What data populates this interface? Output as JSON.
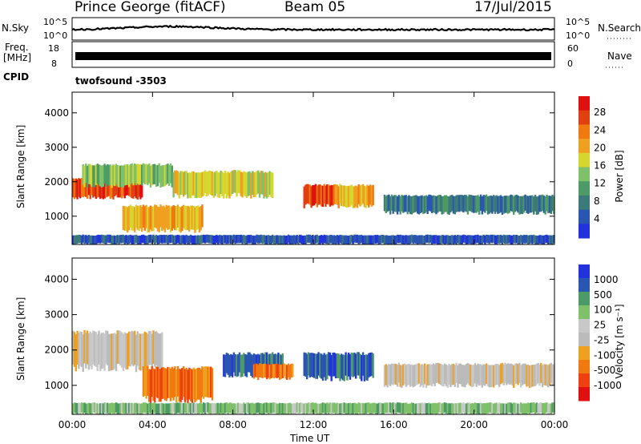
{
  "header": {
    "station": "Prince George (fitACF)",
    "beam": "Beam 05",
    "date": "17/Jul/2015"
  },
  "top_panels": {
    "nsky_label": "N.Sky",
    "nsky_ticks": [
      "10^5",
      "10^0"
    ],
    "nsearch_label": "N.Search",
    "nsearch_ticks": [
      "10^5",
      "10^0"
    ],
    "freq_label_line1": "Freq.",
    "freq_label_line2": "[MHz]",
    "freq_ticks": [
      "18",
      "8"
    ],
    "nave_label": "Nave",
    "nave_ticks": [
      "60",
      "0"
    ],
    "cpid_label": "CPID",
    "cpid_value": "twofsound -3503"
  },
  "colors": {
    "power_scale": [
      "#2233dd",
      "#2a55b0",
      "#3c7a7a",
      "#4d9a66",
      "#7fc06a",
      "#d6d62e",
      "#f0a020",
      "#f07a10",
      "#e04010",
      "#e01010"
    ],
    "velocity_scale": [
      "#e01010",
      "#f04010",
      "#f07a10",
      "#f0a020",
      "#bbbbbb",
      "#c8c8c8",
      "#7fc06a",
      "#4d9a66",
      "#2a55b0",
      "#2233dd"
    ]
  },
  "chart_data": [
    {
      "type": "heatmap",
      "panel": "power",
      "ylabel": "Slant Range [km]",
      "ylim": [
        180,
        4600
      ],
      "yticks": [
        "4000",
        "3000",
        "2000",
        "1000"
      ],
      "xticks": [
        "00:00",
        "04:00",
        "08:00",
        "12:00",
        "16:00",
        "20:00",
        "00:00"
      ],
      "xlim_hours": [
        0,
        24
      ],
      "colorbar": {
        "label": "Power [dB]",
        "ticks": [
          "28",
          "24",
          "20",
          "16",
          "12",
          "8",
          "4"
        ],
        "range": [
          0,
          32
        ]
      },
      "echo_bands": [
        {
          "t0": 0.0,
          "t1": 3.5,
          "r0": 1550,
          "r1": 2100,
          "level": 26
        },
        {
          "t0": 0.5,
          "t1": 5.0,
          "r0": 1900,
          "r1": 2500,
          "level": 14
        },
        {
          "t0": 2.5,
          "t1": 6.5,
          "r0": 600,
          "r1": 1300,
          "level": 22
        },
        {
          "t0": 5.0,
          "t1": 10.0,
          "r0": 1600,
          "r1": 2300,
          "level": 18
        },
        {
          "t0": 11.5,
          "t1": 13.0,
          "r0": 1300,
          "r1": 1900,
          "level": 28
        },
        {
          "t0": 13.0,
          "t1": 15.0,
          "r0": 1300,
          "r1": 1900,
          "level": 20
        },
        {
          "t0": 15.5,
          "t1": 24.0,
          "r0": 1100,
          "r1": 1600,
          "level": 8
        },
        {
          "t0": 0.0,
          "t1": 24.0,
          "r0": 200,
          "r1": 450,
          "level": 6
        }
      ]
    },
    {
      "type": "heatmap",
      "panel": "velocity",
      "ylabel": "Slant Range [km]",
      "ylim": [
        180,
        4600
      ],
      "yticks": [
        "4000",
        "3000",
        "2000",
        "1000"
      ],
      "xticks": [
        "00:00",
        "04:00",
        "08:00",
        "12:00",
        "16:00",
        "20:00",
        "00:00"
      ],
      "xlabel": "Time UT",
      "xlim_hours": [
        0,
        24
      ],
      "colorbar": {
        "label": "Velocity [m s⁻¹]",
        "ticks": [
          "1000",
          "500",
          "100",
          "25",
          "-25",
          "-100",
          "-500",
          "-1000"
        ]
      },
      "echo_bands": [
        {
          "t0": 0.0,
          "t1": 4.5,
          "r0": 1500,
          "r1": 2500,
          "level": 0
        },
        {
          "t0": 3.5,
          "t1": 7.0,
          "r0": 600,
          "r1": 1500,
          "level": -400
        },
        {
          "t0": 7.5,
          "t1": 10.5,
          "r0": 1300,
          "r1": 1900,
          "level": 600
        },
        {
          "t0": 9.0,
          "t1": 11.0,
          "r0": 1200,
          "r1": 1600,
          "level": -150
        },
        {
          "t0": 11.5,
          "t1": 15.0,
          "r0": 1200,
          "r1": 1900,
          "level": 700
        },
        {
          "t0": 15.5,
          "t1": 24.0,
          "r0": 1000,
          "r1": 1600,
          "level": 0
        },
        {
          "t0": 0.0,
          "t1": 24.0,
          "r0": 200,
          "r1": 500,
          "level": 60
        }
      ]
    }
  ]
}
